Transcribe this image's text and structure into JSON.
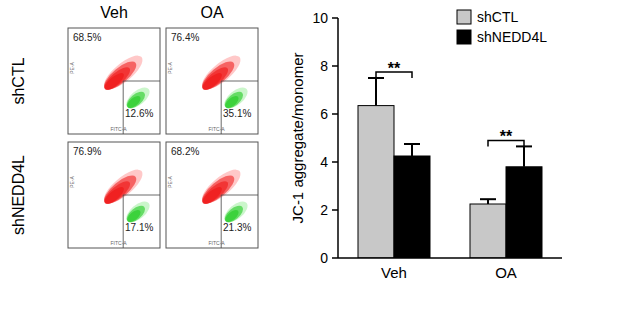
{
  "flow_cytometry": {
    "columns": [
      "Veh",
      "OA"
    ],
    "rows": [
      "shCTL",
      "shNEDD4L"
    ],
    "x_label": "FITC-A",
    "y_label": "PE-A",
    "panels": [
      [
        {
          "upper": "68.5%",
          "lower": "12.6%"
        },
        {
          "upper": "76.4%",
          "lower": "35.1%"
        }
      ],
      [
        {
          "upper": "76.9%",
          "lower": "17.1%"
        },
        {
          "upper": "68.2%",
          "lower": "21.3%"
        }
      ]
    ]
  },
  "chart_data": {
    "type": "bar",
    "y_label": "JC-1 aggregate/monomer",
    "categories": [
      "Veh",
      "OA"
    ],
    "series": [
      {
        "name": "shCTL",
        "color": "#c8c8c8",
        "values": [
          6.35,
          2.25
        ],
        "errors": [
          1.15,
          0.2
        ]
      },
      {
        "name": "shNEDD4L",
        "color": "#000000",
        "values": [
          4.25,
          3.8
        ],
        "errors": [
          0.5,
          0.85
        ]
      }
    ],
    "ylim": [
      0,
      10
    ],
    "yticks": [
      0,
      2,
      4,
      6,
      8,
      10
    ],
    "legend": "top-right",
    "significance": [
      "**",
      "**"
    ]
  }
}
